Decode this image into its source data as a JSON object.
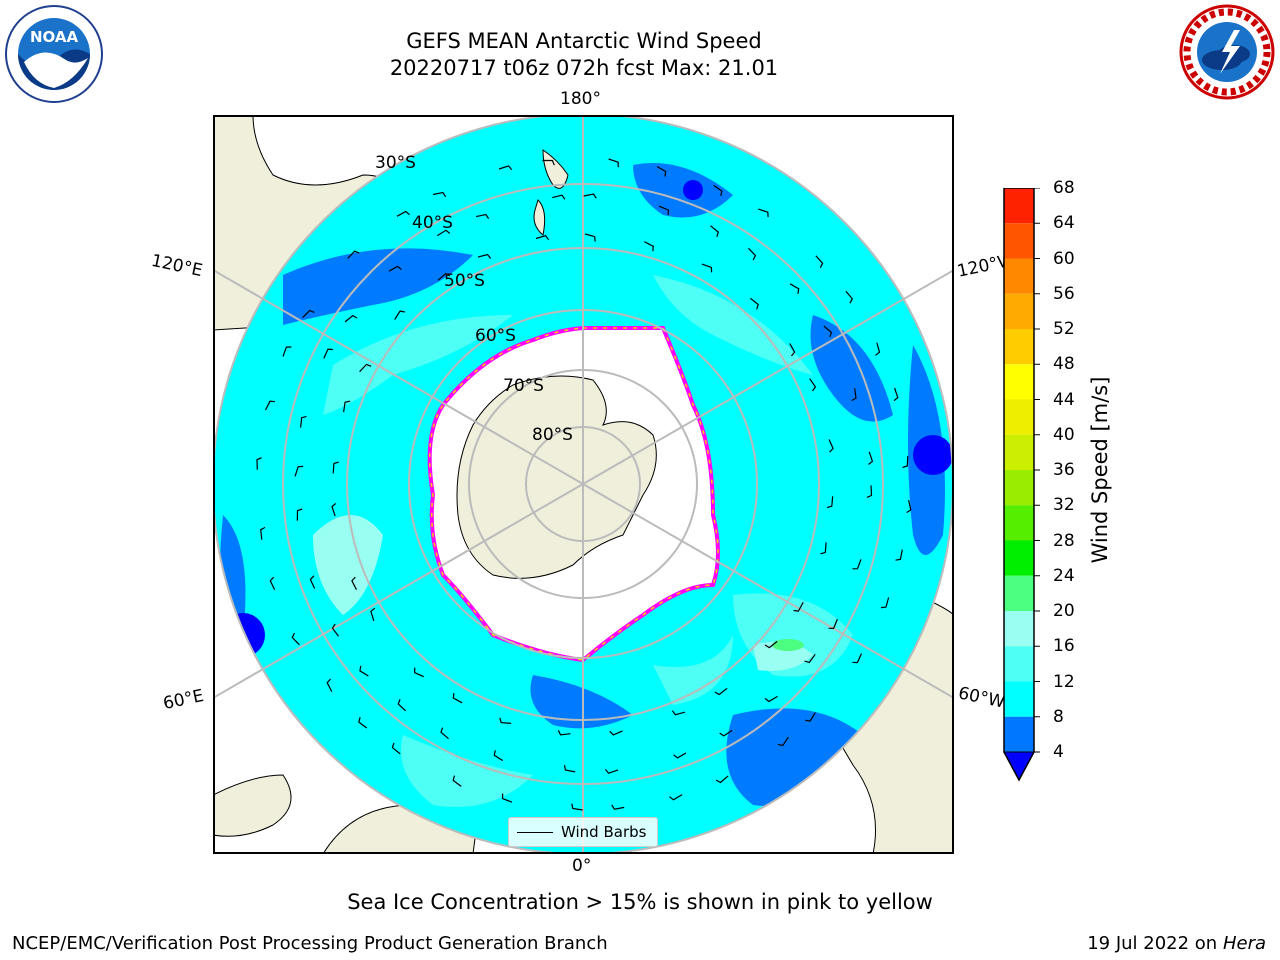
{
  "header": {
    "title_line1": "GEFS MEAN Antarctic Wind Speed",
    "title_line2": "20220717 t06z 072h fcst   Max: 21.01"
  },
  "logos": {
    "left": {
      "icon": "noaa-logo",
      "text": "NOAA"
    },
    "right": {
      "icon": "national-weather-service-logo",
      "text": "NATIONAL WEATHER SERVICE"
    }
  },
  "map": {
    "projection": "south-polar-stereographic",
    "longitude_labels": {
      "top": "180°",
      "bottom": "0°",
      "left_upper": "120°E",
      "left_lower": "60°E",
      "right_upper": "120°W",
      "right_lower": "60°W"
    },
    "latitude_labels": [
      "30°S",
      "40°S",
      "50°S",
      "60°S",
      "70°S",
      "80°S"
    ],
    "legend": {
      "label": "Wind Barbs",
      "line_color": "#000000"
    },
    "colors": {
      "land": "#efefdb",
      "ocean_light": "#00ffff",
      "ocean_mid": "#4dfff5",
      "ocean_dark": "#007bff",
      "ocean_deep": "#0000ff",
      "sea_ice_edge": "#ff00ff",
      "graticule": "#bbbbbb"
    }
  },
  "colorbar": {
    "label": "Wind Speed [m/s]",
    "ticks": [
      "4",
      "8",
      "12",
      "16",
      "20",
      "24",
      "28",
      "32",
      "36",
      "40",
      "44",
      "48",
      "52",
      "56",
      "60",
      "64",
      "68"
    ],
    "colors": [
      "#0077ff",
      "#00ffff",
      "#4dfff5",
      "#99fff2",
      "#4dff80",
      "#00ee00",
      "#55ee00",
      "#99ee00",
      "#ccee00",
      "#eeee00",
      "#ffff00",
      "#ffcc00",
      "#ffaa00",
      "#ff8800",
      "#ff5500",
      "#ff2200"
    ],
    "under_color": "#0000ff"
  },
  "caption": "Sea Ice Concentration > 15% is shown in pink to yellow",
  "footer": {
    "left": "NCEP/EMC/Verification Post Processing Product Generation Branch",
    "date": "19 Jul 2022 on ",
    "machine": "Hera"
  }
}
